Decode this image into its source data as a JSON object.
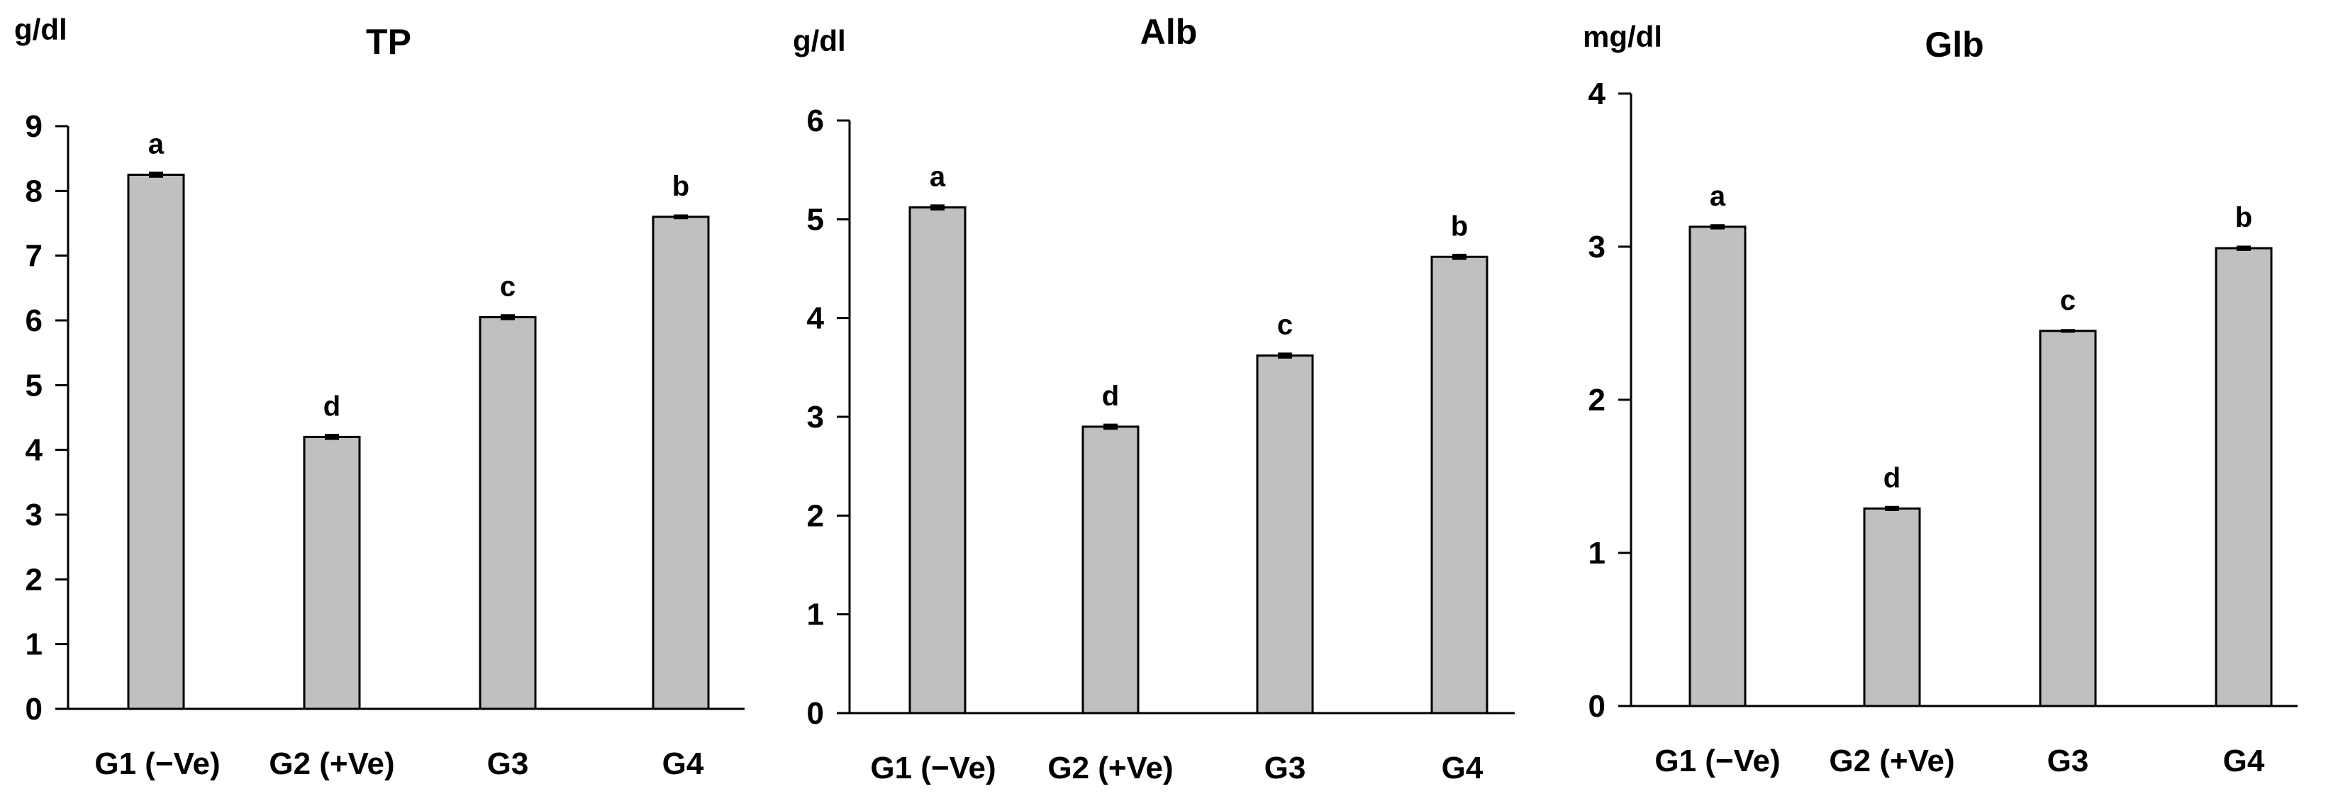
{
  "chart_data": [
    {
      "type": "bar",
      "title": "TP",
      "ylabel": "g/dl",
      "categories": [
        "G1 (−Ve)",
        "G2 (+Ve)",
        "G3",
        "G4"
      ],
      "values": [
        8.25,
        4.2,
        6.05,
        7.6
      ],
      "errors": [
        0.03,
        0.03,
        0.03,
        0.02
      ],
      "significance": [
        "a",
        "d",
        "c",
        "b"
      ],
      "yticks": [
        0,
        1,
        2,
        3,
        4,
        5,
        6,
        7,
        8,
        9
      ],
      "ylim": [
        0,
        9
      ],
      "grid": false,
      "bar_color": "#c0c0c0"
    },
    {
      "type": "bar",
      "title": "Alb",
      "ylabel": "g/dl",
      "categories": [
        "G1 (−Ve)",
        "G2 (+Ve)",
        "G3",
        "G4"
      ],
      "values": [
        5.12,
        2.9,
        3.62,
        4.62
      ],
      "errors": [
        0.02,
        0.02,
        0.02,
        0.02
      ],
      "significance": [
        "a",
        "d",
        "c",
        "b"
      ],
      "yticks": [
        0,
        1,
        2,
        3,
        4,
        5,
        6
      ],
      "ylim": [
        0,
        6
      ],
      "grid": false,
      "bar_color": "#c0c0c0"
    },
    {
      "type": "bar",
      "title": "Glb",
      "ylabel": "mg/dl",
      "categories": [
        "G1 (−Ve)",
        "G2 (+Ve)",
        "G3",
        "G4"
      ],
      "values": [
        3.13,
        1.29,
        2.45,
        2.99
      ],
      "errors": [
        0.01,
        0.01,
        0.005,
        0.01
      ],
      "significance": [
        "a",
        "d",
        "c",
        "b"
      ],
      "yticks": [
        0,
        1,
        2,
        3,
        4
      ],
      "ylim": [
        0,
        4
      ],
      "grid": false,
      "bar_color": "#c0c0c0"
    }
  ]
}
